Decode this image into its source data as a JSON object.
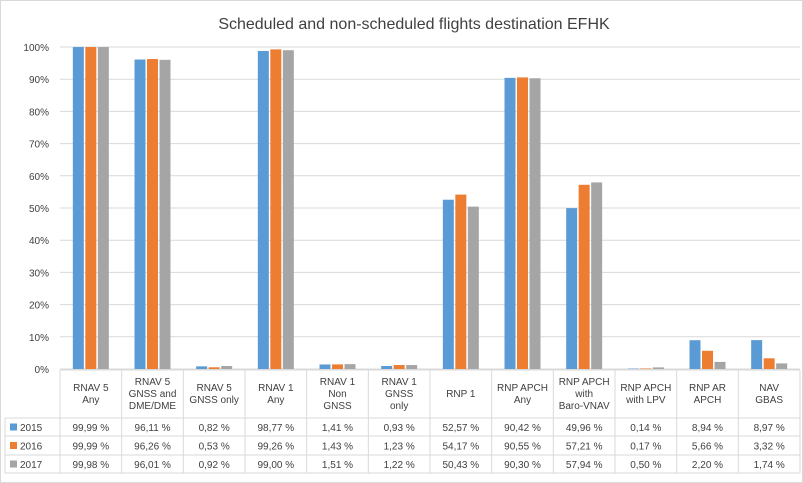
{
  "chart_data": {
    "type": "bar",
    "title": "Scheduled and non-scheduled flights destination EFHK",
    "xlabel": "",
    "ylabel": "",
    "ylim": [
      0,
      100
    ],
    "yticks": [
      "0%",
      "10%",
      "20%",
      "30%",
      "40%",
      "50%",
      "60%",
      "70%",
      "80%",
      "90%",
      "100%"
    ],
    "grid": true,
    "legend": "data-table-left",
    "categories": [
      [
        "RNAV 5",
        "Any"
      ],
      [
        "RNAV 5",
        "GNSS and",
        "DME/DME"
      ],
      [
        "RNAV 5",
        "GNSS only"
      ],
      [
        "RNAV 1",
        "Any"
      ],
      [
        "RNAV 1",
        "Non",
        "GNSS"
      ],
      [
        "RNAV 1",
        "GNSS",
        "only"
      ],
      [
        "RNP 1"
      ],
      [
        "RNP APCH",
        "Any"
      ],
      [
        "RNP APCH",
        "with",
        "Baro-VNAV"
      ],
      [
        "RNP APCH",
        "with LPV"
      ],
      [
        "RNP AR",
        "APCH"
      ],
      [
        "NAV",
        "GBAS"
      ]
    ],
    "series": [
      {
        "name": "2015",
        "color": "#5B9BD5",
        "values": [
          99.99,
          96.11,
          0.82,
          98.77,
          1.41,
          0.93,
          52.57,
          90.42,
          49.96,
          0.14,
          8.94,
          8.97
        ],
        "labels": [
          "99,99 %",
          "96,11 %",
          "0,82 %",
          "98,77 %",
          "1,41 %",
          "0,93 %",
          "52,57 %",
          "90,42 %",
          "49,96 %",
          "0,14 %",
          "8,94 %",
          "8,97 %"
        ]
      },
      {
        "name": "2016",
        "color": "#ED7D31",
        "values": [
          99.99,
          96.26,
          0.53,
          99.26,
          1.43,
          1.23,
          54.17,
          90.55,
          57.21,
          0.17,
          5.66,
          3.32
        ],
        "labels": [
          "99,99 %",
          "96,26 %",
          "0,53 %",
          "99,26 %",
          "1,43 %",
          "1,23 %",
          "54,17 %",
          "90,55 %",
          "57,21 %",
          "0,17 %",
          "5,66 %",
          "3,32 %"
        ]
      },
      {
        "name": "2017",
        "color": "#A5A5A5",
        "values": [
          99.98,
          96.01,
          0.92,
          99.0,
          1.51,
          1.22,
          50.43,
          90.3,
          57.94,
          0.5,
          2.2,
          1.74
        ],
        "labels": [
          "99,98 %",
          "96,01 %",
          "0,92 %",
          "99,00 %",
          "1,51 %",
          "1,22 %",
          "50,43 %",
          "90,30 %",
          "57,94 %",
          "0,50 %",
          "2,20 %",
          "1,74 %"
        ]
      }
    ]
  }
}
